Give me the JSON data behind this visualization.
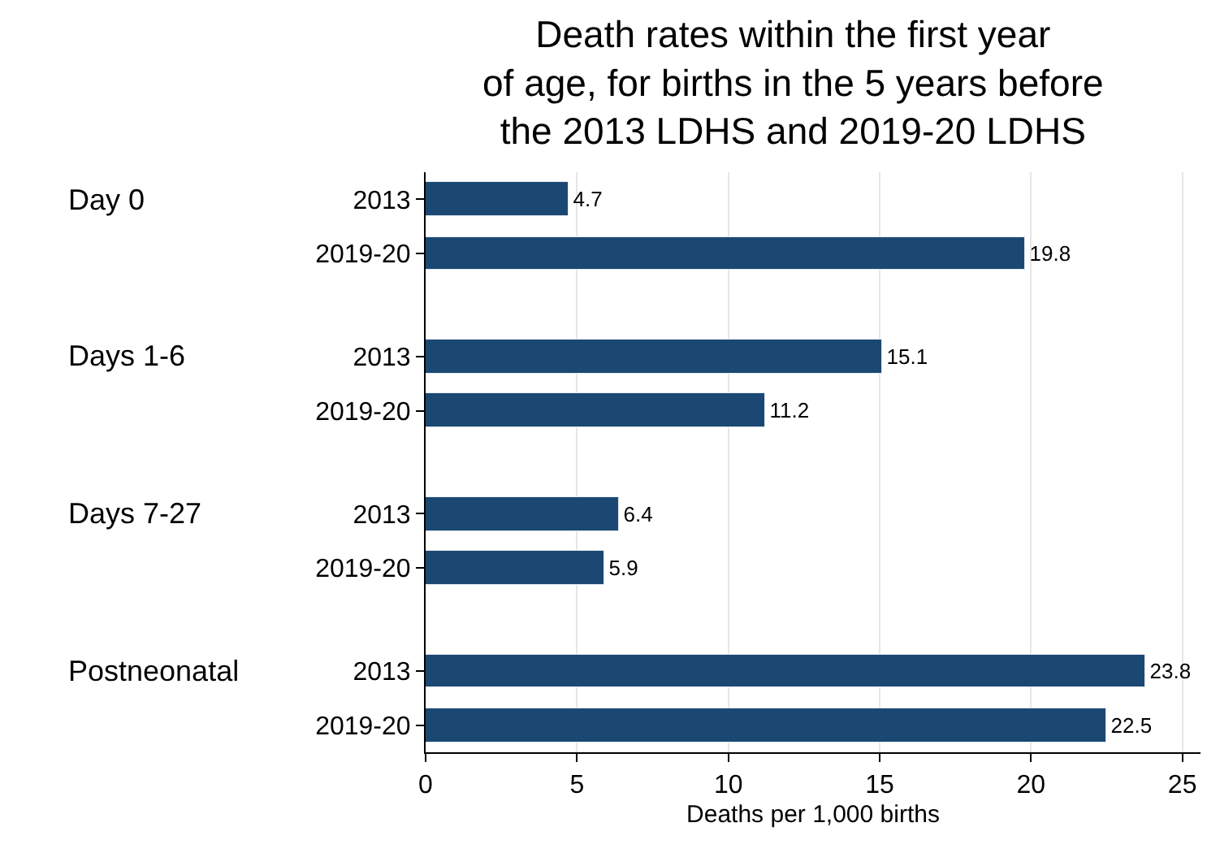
{
  "chart_data": {
    "type": "bar",
    "orientation": "horizontal",
    "title": "Death rates within the first year\nof age, for births in the 5 years before\nthe 2013 LDHS and 2019-20 LDHS",
    "xlabel": "Deaths per 1,000 births",
    "categories": [
      "2013",
      "2019-20",
      "2013",
      "2019-20",
      "2013",
      "2019-20",
      "2013",
      "2019-20"
    ],
    "values": [
      4.7,
      19.8,
      15.1,
      11.2,
      6.4,
      5.9,
      23.8,
      22.5
    ],
    "color": "#1b4872",
    "annotations": [
      "Day 0",
      "Days 1-6",
      "Days 7-27",
      "Postneonatal"
    ],
    "xlim": [
      0,
      25.6
    ],
    "xticks": [
      0,
      5,
      10,
      15,
      20,
      25
    ],
    "grid": "x",
    "data_labels": true,
    "legend": false
  }
}
